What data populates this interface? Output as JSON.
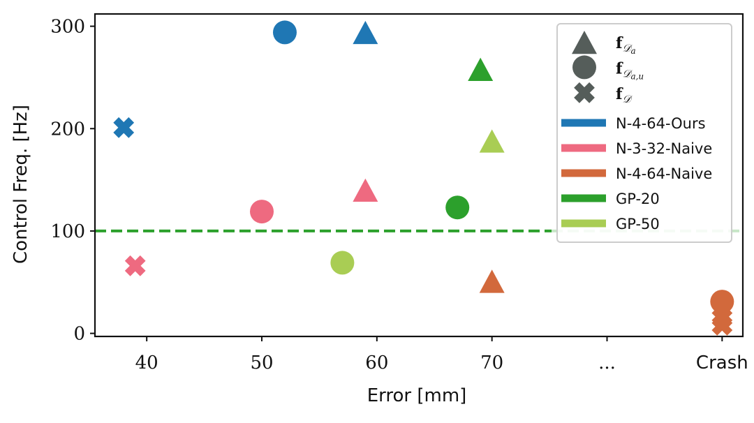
{
  "chart_data": {
    "type": "scatter",
    "xlabel": "Error [mm]",
    "ylabel": "Control Freq. [Hz]",
    "xlim": [
      35.5,
      91.8
    ],
    "ylim": [
      -3,
      312
    ],
    "x_ticks": [
      {
        "value": 40,
        "label": "40"
      },
      {
        "value": 50,
        "label": "50"
      },
      {
        "value": 60,
        "label": "60"
      },
      {
        "value": 70,
        "label": "70"
      },
      {
        "value": 80,
        "label": "..."
      },
      {
        "value": 90,
        "label": "Crash"
      }
    ],
    "y_ticks": [
      {
        "value": 0,
        "label": "0"
      },
      {
        "value": 100,
        "label": "100"
      },
      {
        "value": 200,
        "label": "200"
      },
      {
        "value": 300,
        "label": "300"
      }
    ],
    "reference_line": {
      "y": 100,
      "color": "#2ca02c",
      "style": "dashed"
    },
    "series": [
      {
        "name": "N-4-64-Ours",
        "color": "#1f77b4",
        "points": [
          {
            "x": 52,
            "y": 294,
            "marker": "circle"
          },
          {
            "x": 59,
            "y": 293,
            "marker": "triangle"
          },
          {
            "x": 38,
            "y": 201,
            "marker": "x"
          }
        ]
      },
      {
        "name": "N-3-32-Naive",
        "color": "#ee6a80",
        "points": [
          {
            "x": 50,
            "y": 119,
            "marker": "circle"
          },
          {
            "x": 59,
            "y": 139,
            "marker": "triangle"
          },
          {
            "x": 39,
            "y": 66,
            "marker": "x"
          }
        ]
      },
      {
        "name": "N-4-64-Naive",
        "color": "#d2693c",
        "points": [
          {
            "x": 70,
            "y": 50,
            "marker": "triangle"
          },
          {
            "x": 90,
            "y": 31,
            "marker": "circle"
          },
          {
            "x": 90,
            "y": 15,
            "marker": "x"
          },
          {
            "x": 90,
            "y": 8,
            "marker": "x"
          }
        ]
      },
      {
        "name": "GP-20",
        "color": "#2ca02c",
        "points": [
          {
            "x": 69,
            "y": 257,
            "marker": "triangle"
          },
          {
            "x": 67,
            "y": 123,
            "marker": "circle"
          }
        ]
      },
      {
        "name": "GP-50",
        "color": "#a9cd54",
        "points": [
          {
            "x": 70,
            "y": 187,
            "marker": "triangle"
          },
          {
            "x": 57,
            "y": 69,
            "marker": "circle"
          }
        ]
      }
    ],
    "legend": {
      "position": "top-right",
      "marker_color": "#555d5a",
      "marker_entries": [
        {
          "marker": "triangle",
          "base": "f",
          "sub": "𝒟",
          "subsub": "a"
        },
        {
          "marker": "circle",
          "base": "f",
          "sub": "𝒟",
          "subsub": "a,u"
        },
        {
          "marker": "x",
          "base": "f",
          "sub": "𝒟",
          "subsub": ""
        }
      ]
    }
  }
}
